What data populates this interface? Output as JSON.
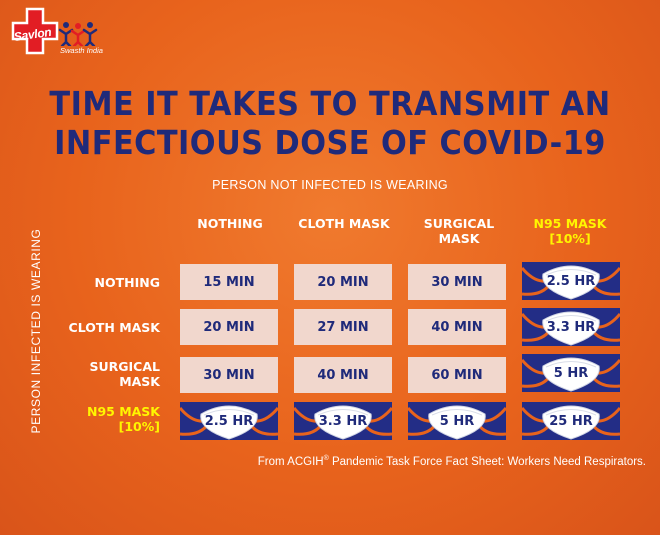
{
  "logo": {
    "brand": "Savlon",
    "tagline": "Swasth India"
  },
  "title": {
    "line1": "TIME IT TAKES TO TRANSMIT AN",
    "line2": "INFECTIOUS DOSE OF COVID-19"
  },
  "subtitle": "PERSON NOT INFECTED IS WEARING",
  "vertical_label": "PERSON INFECTED IS WEARING",
  "columns": [
    {
      "line1": "NOTHING",
      "line2": ""
    },
    {
      "line1": "CLOTH MASK",
      "line2": ""
    },
    {
      "line1": "SURGICAL",
      "line2": "MASK"
    },
    {
      "line1": "N95 MASK",
      "line2": "[10%]"
    }
  ],
  "rows": [
    {
      "line1": "NOTHING",
      "line2": "",
      "cells": [
        "15 MIN",
        "20 MIN",
        "30 MIN",
        "2.5 HR"
      ]
    },
    {
      "line1": "CLOTH MASK",
      "line2": "",
      "cells": [
        "20 MIN",
        "27 MIN",
        "40 MIN",
        "3.3 HR"
      ]
    },
    {
      "line1": "SURGICAL",
      "line2": "MASK",
      "cells": [
        "30 MIN",
        "40 MIN",
        "60 MIN",
        "5 HR"
      ]
    },
    {
      "line1": "N95 MASK",
      "line2": "[10%]",
      "cells": [
        "2.5 HR",
        "3.3 HR",
        "5 HR",
        "25 HR"
      ]
    }
  ],
  "source": {
    "prefix": "From ACGIH",
    "reg": "®",
    "rest": " Pandemic Task Force Fact Sheet: Workers Need Respirators."
  },
  "colors": {
    "background": "#e8631c",
    "title": "#1f2a7a",
    "highlight": "#fff600",
    "cell": "#f1d7cd",
    "mask_bg": "#232d86",
    "mask_strap": "#e8631c"
  },
  "icons": {
    "logo": "savlon-cross-logo",
    "mask": "n95-mask-icon"
  }
}
